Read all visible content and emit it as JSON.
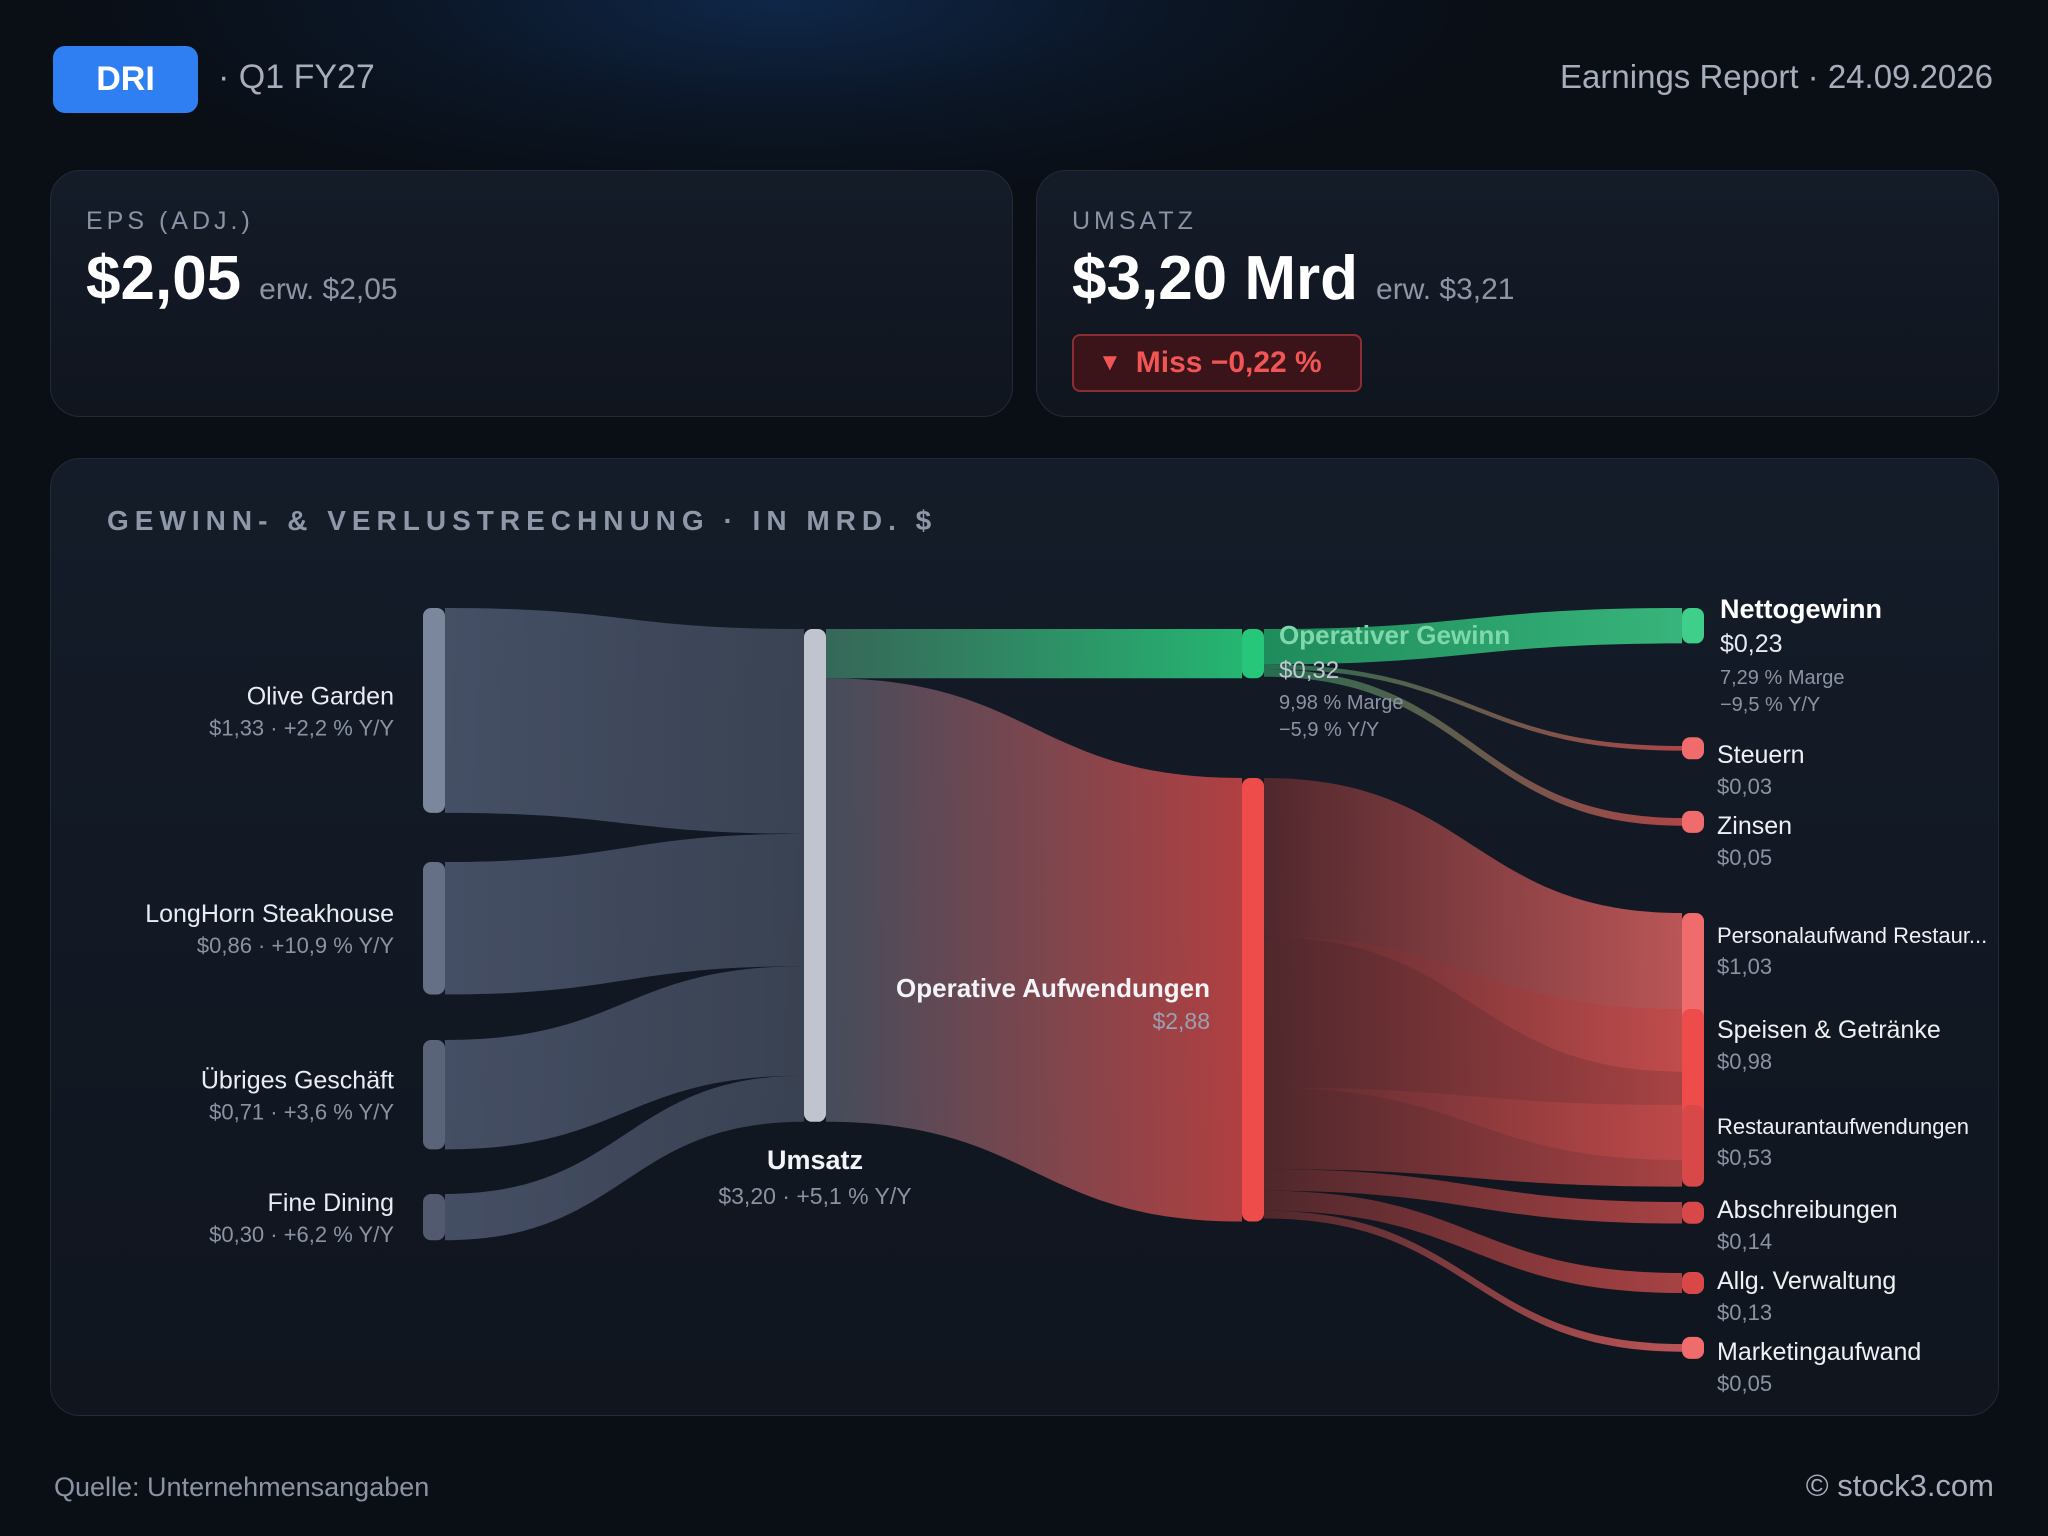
{
  "header": {
    "ticker": "DRI",
    "period": "· Q1 FY27",
    "report": "Earnings Report · 24.09.2026"
  },
  "kpis": {
    "eps": {
      "label": "EPS (ADJ.)",
      "value": "$2,05",
      "expected": "erw. $2,05"
    },
    "revenue": {
      "label": "UMSATZ",
      "value": "$3,20 Mrd",
      "expected": "erw. $3,21",
      "badge": {
        "arrow": "▼",
        "text": "Miss −0,22 %"
      }
    }
  },
  "chart_data": {
    "type": "sankey",
    "title": "GEWINN- & VERLUSTRECHNUNG · IN MRD. $",
    "unit": "Mrd. $",
    "nodes": [
      {
        "id": "olive",
        "label": "Olive Garden",
        "value": 1.33,
        "display": "$1,33",
        "sub": "$1,33 · +2,2 % Y/Y"
      },
      {
        "id": "longhorn",
        "label": "LongHorn Steakhouse",
        "value": 0.86,
        "display": "$0,86",
        "sub": "$0,86 · +10,9 % Y/Y"
      },
      {
        "id": "other",
        "label": "Übriges Geschäft",
        "value": 0.71,
        "display": "$0,71",
        "sub": "$0,71 · +3,6 % Y/Y"
      },
      {
        "id": "fine",
        "label": "Fine Dining",
        "value": 0.3,
        "display": "$0,30",
        "sub": "$0,30 · +6,2 % Y/Y"
      },
      {
        "id": "revenue",
        "label": "Umsatz",
        "value": 3.2,
        "display": "$3,20",
        "sub": "$3,20 · +5,1 % Y/Y"
      },
      {
        "id": "opprofit",
        "label": "Operativer Gewinn",
        "value": 0.32,
        "display": "$0,32",
        "sub1": "9,98 % Marge",
        "sub2": "−5,9 % Y/Y"
      },
      {
        "id": "opex",
        "label": "Operative Aufwendungen",
        "value": 2.88,
        "display": "$2,88"
      },
      {
        "id": "net",
        "label": "Nettogewinn",
        "value": 0.23,
        "display": "$0,23",
        "sub1": "7,29 % Marge",
        "sub2": "−9,5 % Y/Y"
      },
      {
        "id": "tax",
        "label": "Steuern",
        "value": 0.03,
        "display": "$0,03"
      },
      {
        "id": "interest",
        "label": "Zinsen",
        "value": 0.05,
        "display": "$0,05"
      },
      {
        "id": "personnel",
        "label": "Personalaufwand Restaur...",
        "value": 1.03,
        "display": "$1,03"
      },
      {
        "id": "food",
        "label": "Speisen & Getränke",
        "value": 0.98,
        "display": "$0,98"
      },
      {
        "id": "restexp",
        "label": "Restaurantaufwendungen",
        "value": 0.53,
        "display": "$0,53"
      },
      {
        "id": "depr",
        "label": "Abschreibungen",
        "value": 0.14,
        "display": "$0,14"
      },
      {
        "id": "admin",
        "label": "Allg. Verwaltung",
        "value": 0.13,
        "display": "$0,13"
      },
      {
        "id": "marketing",
        "label": "Marketingaufwand",
        "value": 0.05,
        "display": "$0,05"
      }
    ],
    "links": [
      {
        "source": "olive",
        "target": "revenue",
        "value": 1.33
      },
      {
        "source": "longhorn",
        "target": "revenue",
        "value": 0.86
      },
      {
        "source": "other",
        "target": "revenue",
        "value": 0.71
      },
      {
        "source": "fine",
        "target": "revenue",
        "value": 0.3
      },
      {
        "source": "revenue",
        "target": "opprofit",
        "value": 0.32
      },
      {
        "source": "revenue",
        "target": "opex",
        "value": 2.88
      },
      {
        "source": "opprofit",
        "target": "net",
        "value": 0.23
      },
      {
        "source": "opprofit",
        "target": "tax",
        "value": 0.03
      },
      {
        "source": "opprofit",
        "target": "interest",
        "value": 0.05
      },
      {
        "source": "opex",
        "target": "personnel",
        "value": 1.03
      },
      {
        "source": "opex",
        "target": "food",
        "value": 0.98
      },
      {
        "source": "opex",
        "target": "restexp",
        "value": 0.53
      },
      {
        "source": "opex",
        "target": "depr",
        "value": 0.14
      },
      {
        "source": "opex",
        "target": "admin",
        "value": 0.13
      },
      {
        "source": "opex",
        "target": "marketing",
        "value": 0.05
      }
    ],
    "colors": {
      "segment": "#5f6b85",
      "revenue": "#bfc4cf",
      "profit": "#27c77a",
      "cost": "#ee4b4b",
      "cost_light": "#f06c6c",
      "cost_dark": "#d94848"
    }
  },
  "footer": {
    "source": "Quelle: Unternehmensangaben",
    "brand": "© stock3.com"
  }
}
